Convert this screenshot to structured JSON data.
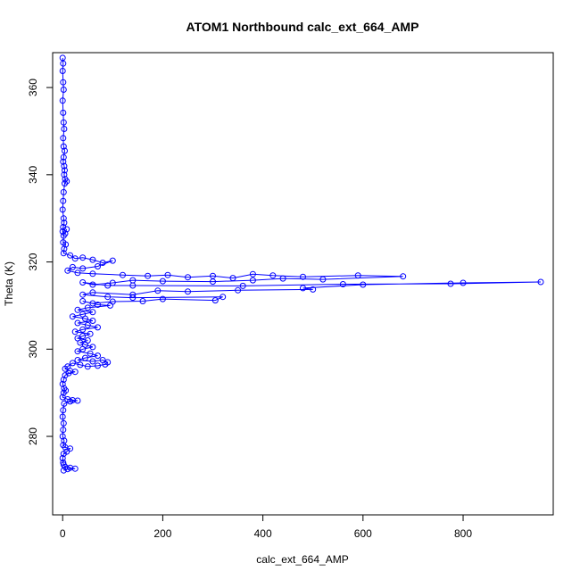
{
  "chart_data": {
    "type": "scatter",
    "style": "points-and-lines",
    "title": "ATOM1 Northbound calc_ext_664_AMP",
    "xlabel": "calc_ext_664_AMP",
    "ylabel": "Theta (K)",
    "xlim": [
      -20,
      980
    ],
    "ylim": [
      262,
      368
    ],
    "xticks": [
      0,
      200,
      400,
      600,
      800
    ],
    "yticks": [
      280,
      300,
      320,
      340,
      360
    ],
    "grid": false,
    "color": "#0000ff",
    "series": [
      {
        "points": [
          [
            0,
            366.8
          ],
          [
            1,
            365.5
          ],
          [
            0,
            363.8
          ],
          [
            1,
            361.2
          ],
          [
            2,
            359.5
          ],
          [
            0,
            357.0
          ],
          [
            1,
            354.2
          ],
          [
            2,
            352.0
          ],
          [
            3,
            350.5
          ],
          [
            1,
            348.4
          ],
          [
            2,
            346.5
          ],
          [
            4,
            345.5
          ],
          [
            2,
            344.0
          ],
          [
            1,
            343.0
          ],
          [
            3,
            342.0
          ],
          [
            4,
            341.0
          ],
          [
            3,
            340.0
          ],
          [
            5,
            339.0
          ],
          [
            8,
            338.5
          ],
          [
            4,
            338.0
          ],
          [
            2,
            336.0
          ],
          [
            1,
            334.0
          ],
          [
            0,
            332.0
          ],
          [
            2,
            330.0
          ],
          [
            3,
            329.0
          ],
          [
            1,
            328.0
          ],
          [
            0,
            327.0
          ],
          [
            5,
            326.5
          ],
          [
            8,
            327.5
          ],
          [
            2,
            326.0
          ],
          [
            1,
            324.5
          ],
          [
            6,
            324.0
          ],
          [
            3,
            323.0
          ],
          [
            2,
            322.0
          ],
          [
            15,
            321.5
          ],
          [
            25,
            320.8
          ],
          [
            40,
            321.0
          ],
          [
            60,
            320.5
          ],
          [
            80,
            319.8
          ],
          [
            100,
            320.3
          ],
          [
            70,
            319.0
          ],
          [
            40,
            318.5
          ],
          [
            20,
            318.8
          ],
          [
            10,
            318.0
          ],
          [
            30,
            317.5
          ],
          [
            60,
            317.3
          ],
          [
            120,
            317.0
          ],
          [
            170,
            316.8
          ],
          [
            210,
            317.0
          ],
          [
            250,
            316.5
          ],
          [
            300,
            316.8
          ],
          [
            340,
            316.3
          ],
          [
            380,
            317.2
          ],
          [
            420,
            316.9
          ],
          [
            480,
            316.6
          ],
          [
            590,
            316.9
          ],
          [
            680,
            316.7
          ],
          [
            520,
            316.0
          ],
          [
            440,
            316.2
          ],
          [
            380,
            315.8
          ],
          [
            300,
            315.5
          ],
          [
            200,
            315.6
          ],
          [
            140,
            315.8
          ],
          [
            100,
            315.2
          ],
          [
            60,
            314.8
          ],
          [
            40,
            315.3
          ],
          [
            90,
            314.6
          ],
          [
            140,
            314.6
          ],
          [
            360,
            314.5
          ],
          [
            560,
            314.9
          ],
          [
            775,
            315.0
          ],
          [
            955,
            315.4
          ],
          [
            800,
            315.2
          ],
          [
            600,
            314.8
          ],
          [
            480,
            314.0
          ],
          [
            500,
            313.7
          ],
          [
            350,
            313.5
          ],
          [
            250,
            313.2
          ],
          [
            190,
            313.4
          ],
          [
            140,
            312.5
          ],
          [
            60,
            313.0
          ],
          [
            40,
            312.5
          ],
          [
            90,
            312.0
          ],
          [
            140,
            311.8
          ],
          [
            320,
            312.0
          ],
          [
            305,
            311.2
          ],
          [
            200,
            311.5
          ],
          [
            160,
            311.0
          ],
          [
            100,
            310.9
          ],
          [
            60,
            310.5
          ],
          [
            40,
            311.0
          ],
          [
            70,
            310.2
          ],
          [
            95,
            310.0
          ],
          [
            50,
            309.5
          ],
          [
            30,
            309.0
          ],
          [
            60,
            308.5
          ],
          [
            40,
            308.0
          ],
          [
            20,
            307.5
          ],
          [
            45,
            307.0
          ],
          [
            60,
            306.5
          ],
          [
            30,
            306.0
          ],
          [
            50,
            305.5
          ],
          [
            70,
            305.0
          ],
          [
            40,
            304.5
          ],
          [
            25,
            304.0
          ],
          [
            55,
            303.5
          ],
          [
            40,
            303.0
          ],
          [
            30,
            302.5
          ],
          [
            50,
            302.0
          ],
          [
            35,
            301.5
          ],
          [
            45,
            301.0
          ],
          [
            60,
            300.5
          ],
          [
            40,
            300.0
          ],
          [
            30,
            299.5
          ],
          [
            55,
            299.0
          ],
          [
            70,
            298.5
          ],
          [
            45,
            298.0
          ],
          [
            30,
            297.5
          ],
          [
            60,
            297.2
          ],
          [
            80,
            297.5
          ],
          [
            90,
            297.0
          ],
          [
            85,
            296.5
          ],
          [
            70,
            296.2
          ],
          [
            50,
            296.0
          ],
          [
            35,
            296.4
          ],
          [
            20,
            296.8
          ],
          [
            10,
            296.0
          ],
          [
            5,
            295.5
          ],
          [
            15,
            295.0
          ],
          [
            25,
            294.8
          ],
          [
            12,
            294.5
          ],
          [
            5,
            294.0
          ],
          [
            2,
            293.0
          ],
          [
            0,
            292.0
          ],
          [
            3,
            291.0
          ],
          [
            6,
            290.5
          ],
          [
            2,
            290.0
          ],
          [
            0,
            289.0
          ],
          [
            10,
            288.5
          ],
          [
            20,
            288.3
          ],
          [
            30,
            288.2
          ],
          [
            15,
            288.0
          ],
          [
            3,
            287.5
          ],
          [
            1,
            286.0
          ],
          [
            0,
            284.5
          ],
          [
            2,
            283.0
          ],
          [
            1,
            281.5
          ],
          [
            0,
            280.0
          ],
          [
            3,
            279.0
          ],
          [
            1,
            278.0
          ],
          [
            5,
            277.5
          ],
          [
            15,
            277.2
          ],
          [
            8,
            276.5
          ],
          [
            2,
            276.0
          ],
          [
            0,
            275.0
          ],
          [
            1,
            274.0
          ],
          [
            2,
            273.5
          ],
          [
            5,
            273.0
          ],
          [
            15,
            272.8
          ],
          [
            25,
            272.6
          ],
          [
            10,
            272.5
          ],
          [
            2,
            272.2
          ]
        ]
      }
    ]
  }
}
